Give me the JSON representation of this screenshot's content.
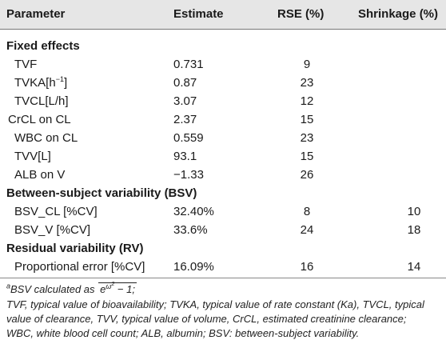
{
  "headers": {
    "parameter": "Parameter",
    "estimate": "Estimate",
    "rse": "RSE (%)",
    "shrinkage": "Shrinkage (%)"
  },
  "sections": [
    {
      "title": "Fixed effects",
      "rows": [
        {
          "parameter": "TVF",
          "estimate": "0.731",
          "rse": "9",
          "shrinkage": ""
        },
        {
          "parameter": "TVKA[h",
          "parameter_sup": "−1",
          "parameter_tail": "]",
          "estimate": "0.87",
          "rse": "23",
          "shrinkage": ""
        },
        {
          "parameter": "TVCL[L/h]",
          "estimate": "3.07",
          "rse": "12",
          "shrinkage": ""
        },
        {
          "parameter": "CrCL on CL",
          "estimate": "2.37",
          "rse": "15",
          "shrinkage": ""
        },
        {
          "parameter": "WBC on CL",
          "estimate": "0.559",
          "rse": "23",
          "shrinkage": ""
        },
        {
          "parameter": "TVV[L]",
          "estimate": "93.1",
          "rse": "15",
          "shrinkage": ""
        },
        {
          "parameter": "ALB on V",
          "estimate": "−1.33",
          "rse": "26",
          "shrinkage": ""
        }
      ]
    },
    {
      "title": "Between-subject variability (BSV)",
      "rows": [
        {
          "parameter": "BSV_CL [%CV]",
          "estimate": "32.40%",
          "rse": "8",
          "shrinkage": "10"
        },
        {
          "parameter": "BSV_V [%CV]",
          "estimate": "33.6%",
          "rse": "24",
          "shrinkage": "18"
        }
      ]
    },
    {
      "title": "Residual variability (RV)",
      "rows": [
        {
          "parameter": "Proportional error [%CV]",
          "estimate": "16.09%",
          "rse": "16",
          "shrinkage": "14"
        }
      ]
    }
  ],
  "footnotes": {
    "line1_mark": "a",
    "line1_text": "BSV calculated as",
    "line1_formula": "e",
    "line1_exp": "ω",
    "line1_exp2": "2",
    "line1_tail": " − 1;",
    "line2": "TVF, typical value of bioavailability; TVKA, typical value of rate constant (Ka), TVCL, typical",
    "line3": "value of clearance, TVV, typical value of volume, CrCL, estimated creatinine clearance;",
    "line4": "WBC, white blood cell count; ALB, albumin; BSV: between-subject variability."
  }
}
